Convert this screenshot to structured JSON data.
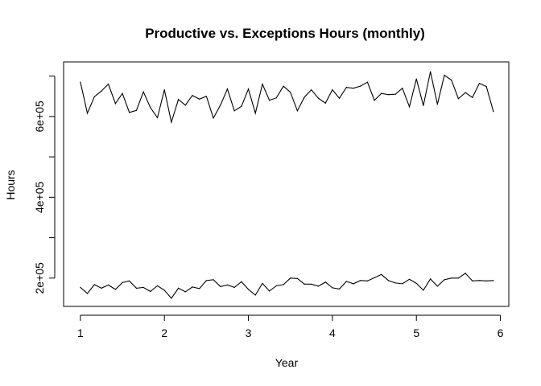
{
  "chart_data": {
    "type": "line",
    "title": "Productive vs. Exceptions Hours (monthly)",
    "xlabel": "Year",
    "ylabel": "Hours",
    "xlim": [
      0.8,
      6.1
    ],
    "ylim": [
      130000,
      735000
    ],
    "x_ticks": [
      1,
      2,
      3,
      4,
      5,
      6
    ],
    "x_tick_labels": [
      "1",
      "2",
      "3",
      "4",
      "5",
      "6"
    ],
    "y_ticks": [
      200000,
      300000,
      400000,
      500000,
      600000,
      700000
    ],
    "y_tick_labels": [
      "2e+05",
      "",
      "4e+05",
      "",
      "6e+05",
      ""
    ],
    "x": [
      1.0,
      1.083,
      1.167,
      1.25,
      1.333,
      1.417,
      1.5,
      1.583,
      1.667,
      1.75,
      1.833,
      1.917,
      2.0,
      2.083,
      2.167,
      2.25,
      2.333,
      2.417,
      2.5,
      2.583,
      2.667,
      2.75,
      2.833,
      2.917,
      3.0,
      3.083,
      3.167,
      3.25,
      3.333,
      3.417,
      3.5,
      3.583,
      3.667,
      3.75,
      3.833,
      3.917,
      4.0,
      4.083,
      4.167,
      4.25,
      4.333,
      4.417,
      4.5,
      4.583,
      4.667,
      4.75,
      4.833,
      4.917,
      5.0,
      5.083,
      5.167,
      5.25,
      5.333,
      5.417,
      5.5,
      5.583,
      5.667,
      5.75,
      5.833,
      5.917
    ],
    "series": [
      {
        "values": [
          685000,
          608000,
          649000,
          663000,
          680000,
          632000,
          657000,
          610000,
          615000,
          661000,
          622000,
          597000,
          666000,
          586000,
          642000,
          628000,
          652000,
          643000,
          650000,
          596000,
          628000,
          668000,
          614000,
          625000,
          668000,
          608000,
          680000,
          640000,
          646000,
          675000,
          660000,
          614000,
          648000,
          666000,
          645000,
          633000,
          666000,
          645000,
          672000,
          670000,
          675000,
          685000,
          640000,
          657000,
          654000,
          655000,
          670000,
          624000,
          693000,
          627000,
          711000,
          630000,
          702000,
          690000,
          644000,
          659000,
          647000,
          682000,
          674000,
          612000
        ]
      },
      {
        "values": [
          177000,
          162000,
          184000,
          175000,
          183000,
          172000,
          189000,
          193000,
          175000,
          177000,
          167000,
          181000,
          170000,
          150000,
          175000,
          166000,
          178000,
          174000,
          194000,
          196000,
          179000,
          183000,
          177000,
          191000,
          172000,
          158000,
          187000,
          168000,
          181000,
          184000,
          200000,
          199000,
          185000,
          185000,
          180000,
          190000,
          176000,
          173000,
          192000,
          186000,
          194000,
          193000,
          201000,
          209000,
          194000,
          188000,
          186000,
          197000,
          187000,
          170000,
          198000,
          180000,
          196000,
          200000,
          200000,
          212000,
          193000,
          194000,
          193000,
          194000
        ]
      }
    ]
  }
}
